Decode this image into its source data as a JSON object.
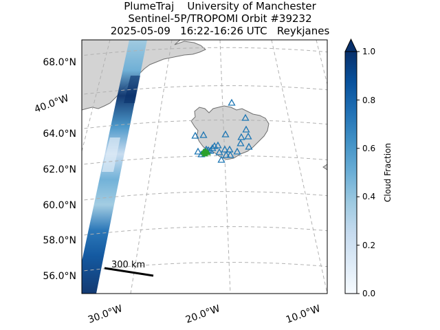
{
  "title": {
    "line1": "PlumeTraj    University of Manchester",
    "line2": "Sentinel-5P/TROPOMI Orbit #39232",
    "line3": "2025-05-09   16:22-16:26 UTC   Reykjanes"
  },
  "map": {
    "lat_labels": [
      "68.0°N",
      "64.0°N",
      "62.0°N",
      "60.0°N",
      "58.0°N",
      "56.0°N"
    ],
    "lon_labels": [
      "30.0°W",
      "20.0°W",
      "10.0°W"
    ],
    "left_lon_label": "40.0°W",
    "scale_bar_label": "300 km",
    "land_color": "#d3d3d3",
    "coast_color": "#6e6e6e",
    "grid_color": "#b0b0b0",
    "volcano_marker_color": "#1f77b4",
    "source_marker_color": "#2ca02c",
    "volcano_count": 26
  },
  "colorbar": {
    "label": "Cloud Fraction",
    "colormap": "Blues",
    "ticks": [
      "0.0",
      "0.2",
      "0.4",
      "0.6",
      "0.8",
      "1.0"
    ],
    "range": [
      0.0,
      1.0
    ],
    "extend": "max"
  }
}
